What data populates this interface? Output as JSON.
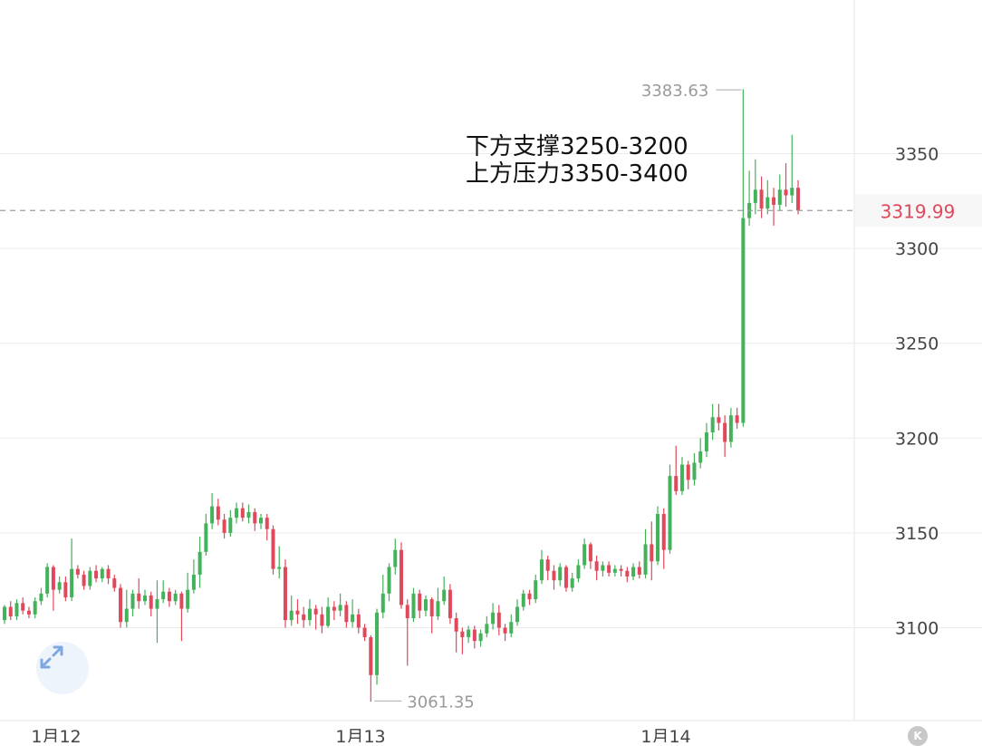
{
  "chart_data": {
    "type": "candlestick",
    "y_ticks": [
      "3350",
      "3300",
      "3250",
      "3200",
      "3150",
      "3100"
    ],
    "ylim": [
      3040,
      3410
    ],
    "x_tick_labels": [
      "1月12",
      "1月13",
      "1月14"
    ],
    "last_price": 3319.99,
    "last_price_label": "3319.99",
    "max": {
      "value": 3383.63,
      "label": "3383.63"
    },
    "min": {
      "value": 3061.35,
      "label": "3061.35"
    },
    "annotations": [
      "下方支撑3250-3200",
      "上方压力3350-3400"
    ],
    "colors": {
      "up": "#43b25a",
      "down": "#e0485c",
      "last_price": "#e0485c",
      "grid": "#ececec"
    },
    "candles": [
      [
        3104,
        3111,
        3102,
        3112
      ],
      [
        3111,
        3106,
        3104,
        3114
      ],
      [
        3106,
        3113,
        3104,
        3115
      ],
      [
        3113,
        3109,
        3107,
        3116
      ],
      [
        3109,
        3107,
        3105,
        3111
      ],
      [
        3107,
        3114,
        3105,
        3116
      ],
      [
        3114,
        3118,
        3112,
        3121
      ],
      [
        3118,
        3132,
        3116,
        3134
      ],
      [
        3132,
        3120,
        3109,
        3133
      ],
      [
        3120,
        3124,
        3118,
        3127
      ],
      [
        3124,
        3116,
        3114,
        3127
      ],
      [
        3116,
        3131,
        3114,
        3147
      ],
      [
        3131,
        3128,
        3126,
        3133
      ],
      [
        3128,
        3122,
        3120,
        3130
      ],
      [
        3122,
        3130,
        3120,
        3132
      ],
      [
        3130,
        3126,
        3124,
        3133
      ],
      [
        3126,
        3131,
        3124,
        3132
      ],
      [
        3131,
        3126,
        3123,
        3133
      ],
      [
        3126,
        3121,
        3119,
        3128
      ],
      [
        3121,
        3103,
        3100,
        3123
      ],
      [
        3103,
        3110,
        3100,
        3120
      ],
      [
        3110,
        3118,
        3106,
        3120
      ],
      [
        3118,
        3114,
        3110,
        3126
      ],
      [
        3114,
        3117,
        3112,
        3120
      ],
      [
        3117,
        3110,
        3106,
        3119
      ],
      [
        3110,
        3115,
        3092,
        3125
      ],
      [
        3115,
        3119,
        3113,
        3125
      ],
      [
        3119,
        3114,
        3111,
        3121
      ],
      [
        3114,
        3118,
        3112,
        3120
      ],
      [
        3118,
        3110,
        3093,
        3119
      ],
      [
        3110,
        3120,
        3108,
        3129
      ],
      [
        3120,
        3128,
        3118,
        3136
      ],
      [
        3128,
        3140,
        3121,
        3148
      ],
      [
        3140,
        3155,
        3138,
        3160
      ],
      [
        3155,
        3164,
        3152,
        3171
      ],
      [
        3164,
        3157,
        3154,
        3168
      ],
      [
        3157,
        3150,
        3147,
        3160
      ],
      [
        3150,
        3158,
        3148,
        3162
      ],
      [
        3158,
        3163,
        3155,
        3166
      ],
      [
        3163,
        3158,
        3156,
        3166
      ],
      [
        3158,
        3161,
        3155,
        3165
      ],
      [
        3161,
        3155,
        3151,
        3163
      ],
      [
        3155,
        3158,
        3152,
        3160
      ],
      [
        3158,
        3152,
        3146,
        3160
      ],
      [
        3152,
        3131,
        3128,
        3154
      ],
      [
        3131,
        3132,
        3126,
        3143
      ],
      [
        3132,
        3104,
        3100,
        3136
      ],
      [
        3104,
        3109,
        3101,
        3117
      ],
      [
        3109,
        3107,
        3102,
        3115
      ],
      [
        3107,
        3104,
        3100,
        3111
      ],
      [
        3104,
        3110,
        3101,
        3115
      ],
      [
        3110,
        3107,
        3099,
        3112
      ],
      [
        3107,
        3101,
        3097,
        3111
      ],
      [
        3101,
        3111,
        3100,
        3116
      ],
      [
        3111,
        3109,
        3104,
        3114
      ],
      [
        3109,
        3112,
        3106,
        3118
      ],
      [
        3112,
        3103,
        3100,
        3114
      ],
      [
        3103,
        3107,
        3100,
        3115
      ],
      [
        3107,
        3100,
        3097,
        3110
      ],
      [
        3100,
        3095,
        3093,
        3102
      ],
      [
        3095,
        3075,
        3061,
        3096
      ],
      [
        3075,
        3108,
        3070,
        3110
      ],
      [
        3108,
        3118,
        3105,
        3128
      ],
      [
        3118,
        3132,
        3114,
        3134
      ],
      [
        3132,
        3141,
        3128,
        3147
      ],
      [
        3141,
        3112,
        3110,
        3145
      ],
      [
        3112,
        3105,
        3080,
        3115
      ],
      [
        3105,
        3118,
        3103,
        3121
      ],
      [
        3118,
        3109,
        3105,
        3120
      ],
      [
        3109,
        3115,
        3106,
        3117
      ],
      [
        3115,
        3106,
        3097,
        3116
      ],
      [
        3106,
        3114,
        3104,
        3121
      ],
      [
        3114,
        3120,
        3112,
        3127
      ],
      [
        3120,
        3105,
        3102,
        3123
      ],
      [
        3105,
        3098,
        3087,
        3108
      ],
      [
        3098,
        3095,
        3086,
        3100
      ],
      [
        3095,
        3099,
        3092,
        3101
      ],
      [
        3099,
        3093,
        3089,
        3101
      ],
      [
        3093,
        3097,
        3090,
        3099
      ],
      [
        3097,
        3102,
        3095,
        3106
      ],
      [
        3102,
        3108,
        3099,
        3113
      ],
      [
        3108,
        3100,
        3096,
        3112
      ],
      [
        3100,
        3097,
        3093,
        3102
      ],
      [
        3097,
        3103,
        3095,
        3107
      ],
      [
        3103,
        3111,
        3101,
        3115
      ],
      [
        3111,
        3118,
        3109,
        3120
      ],
      [
        3118,
        3115,
        3112,
        3120
      ],
      [
        3115,
        3125,
        3113,
        3128
      ],
      [
        3125,
        3136,
        3123,
        3141
      ],
      [
        3136,
        3130,
        3125,
        3138
      ],
      [
        3130,
        3125,
        3120,
        3133
      ],
      [
        3125,
        3132,
        3122,
        3134
      ],
      [
        3132,
        3121,
        3119,
        3133
      ],
      [
        3121,
        3126,
        3119,
        3129
      ],
      [
        3126,
        3133,
        3124,
        3136
      ],
      [
        3133,
        3144,
        3131,
        3147
      ],
      [
        3144,
        3135,
        3131,
        3145
      ],
      [
        3135,
        3130,
        3125,
        3138
      ],
      [
        3130,
        3133,
        3127,
        3135
      ],
      [
        3133,
        3129,
        3127,
        3135
      ],
      [
        3129,
        3131,
        3127,
        3133
      ],
      [
        3131,
        3130,
        3127,
        3133
      ],
      [
        3130,
        3127,
        3124,
        3132
      ],
      [
        3127,
        3132,
        3125,
        3134
      ],
      [
        3132,
        3128,
        3126,
        3135
      ],
      [
        3128,
        3144,
        3126,
        3152
      ],
      [
        3144,
        3135,
        3125,
        3156
      ],
      [
        3135,
        3160,
        3133,
        3164
      ],
      [
        3160,
        3141,
        3131,
        3163
      ],
      [
        3141,
        3180,
        3139,
        3186
      ],
      [
        3180,
        3172,
        3170,
        3196
      ],
      [
        3172,
        3186,
        3170,
        3190
      ],
      [
        3186,
        3178,
        3173,
        3188
      ],
      [
        3178,
        3187,
        3175,
        3192
      ],
      [
        3187,
        3193,
        3184,
        3200
      ],
      [
        3193,
        3203,
        3190,
        3208
      ],
      [
        3203,
        3211,
        3199,
        3218
      ],
      [
        3211,
        3208,
        3204,
        3218
      ],
      [
        3208,
        3198,
        3190,
        3212
      ],
      [
        3198,
        3212,
        3195,
        3216
      ],
      [
        3212,
        3208,
        3205,
        3216
      ],
      [
        3208,
        3316,
        3206,
        3384
      ],
      [
        3316,
        3324,
        3312,
        3341
      ],
      [
        3324,
        3331,
        3318,
        3347
      ],
      [
        3331,
        3321,
        3316,
        3338
      ],
      [
        3321,
        3327,
        3318,
        3336
      ],
      [
        3327,
        3323,
        3312,
        3332
      ],
      [
        3323,
        3331,
        3320,
        3339
      ],
      [
        3331,
        3328,
        3322,
        3345
      ],
      [
        3328,
        3332,
        3324,
        3360
      ],
      [
        3332,
        3320,
        3318,
        3336
      ]
    ]
  }
}
